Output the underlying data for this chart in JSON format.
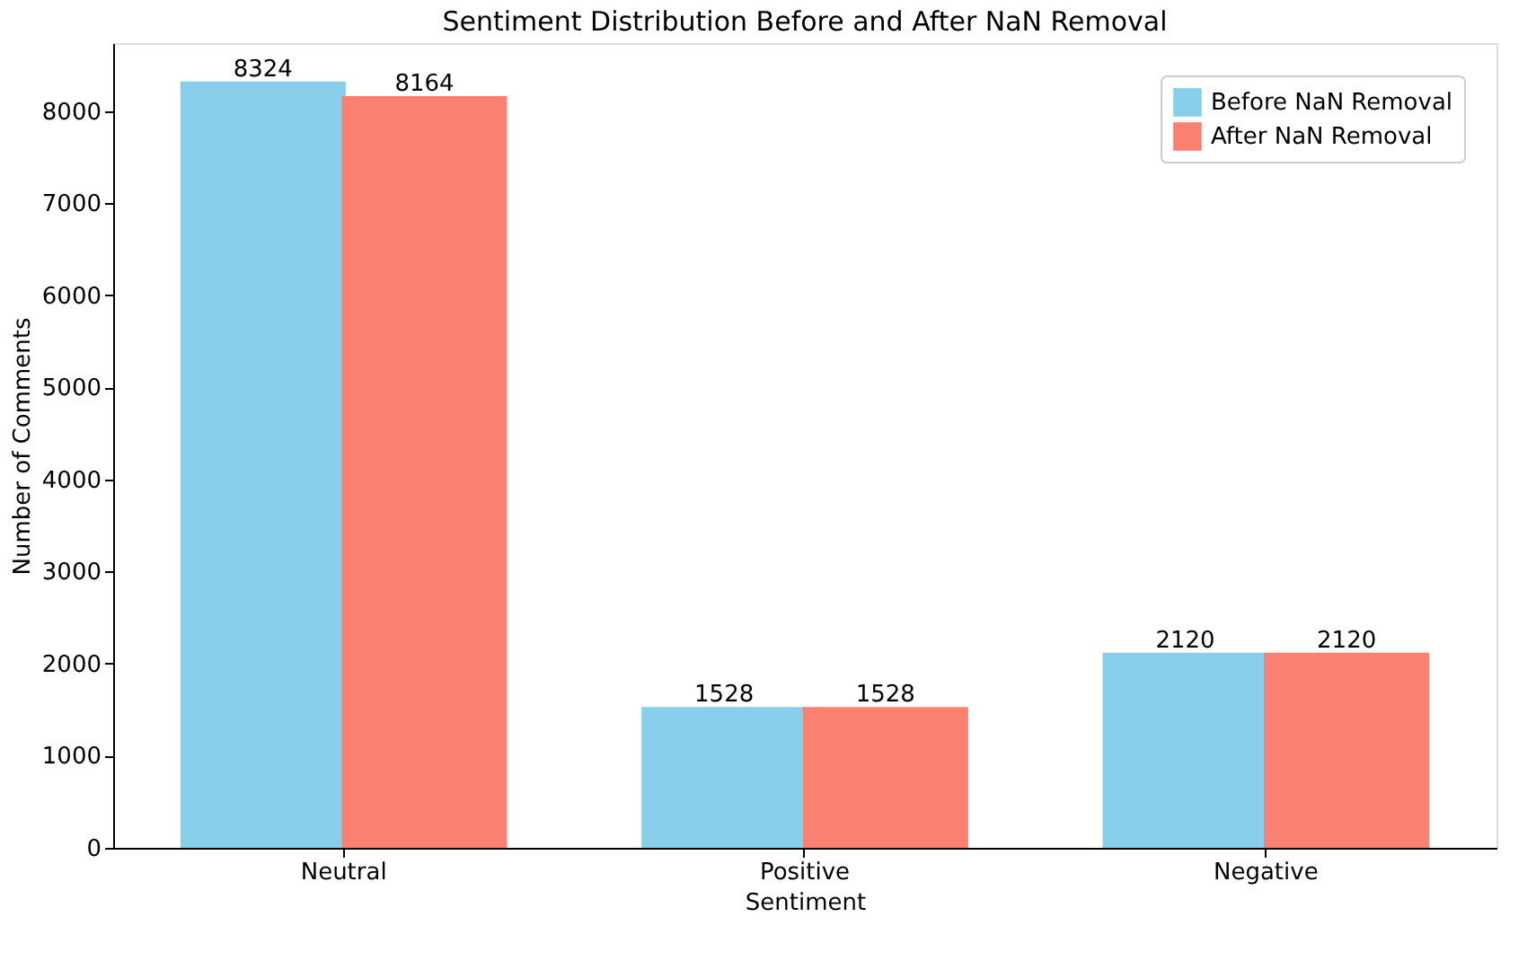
{
  "chart_data": {
    "type": "bar",
    "title": "Sentiment Distribution Before and After NaN Removal",
    "xlabel": "Sentiment",
    "ylabel": "Number of Comments",
    "categories": [
      "Neutral",
      "Positive",
      "Negative"
    ],
    "series": [
      {
        "name": "Before NaN Removal",
        "color": "#87ceeb",
        "values": [
          8324,
          1528,
          2120
        ]
      },
      {
        "name": "After NaN Removal",
        "color": "#fa8072",
        "values": [
          8164,
          1528,
          2120
        ]
      }
    ],
    "ylim": [
      0,
      8740
    ],
    "yticks": [
      0,
      1000,
      2000,
      3000,
      4000,
      5000,
      6000,
      7000,
      8000
    ],
    "grid": false,
    "legend": "top right",
    "data_labels": true
  }
}
